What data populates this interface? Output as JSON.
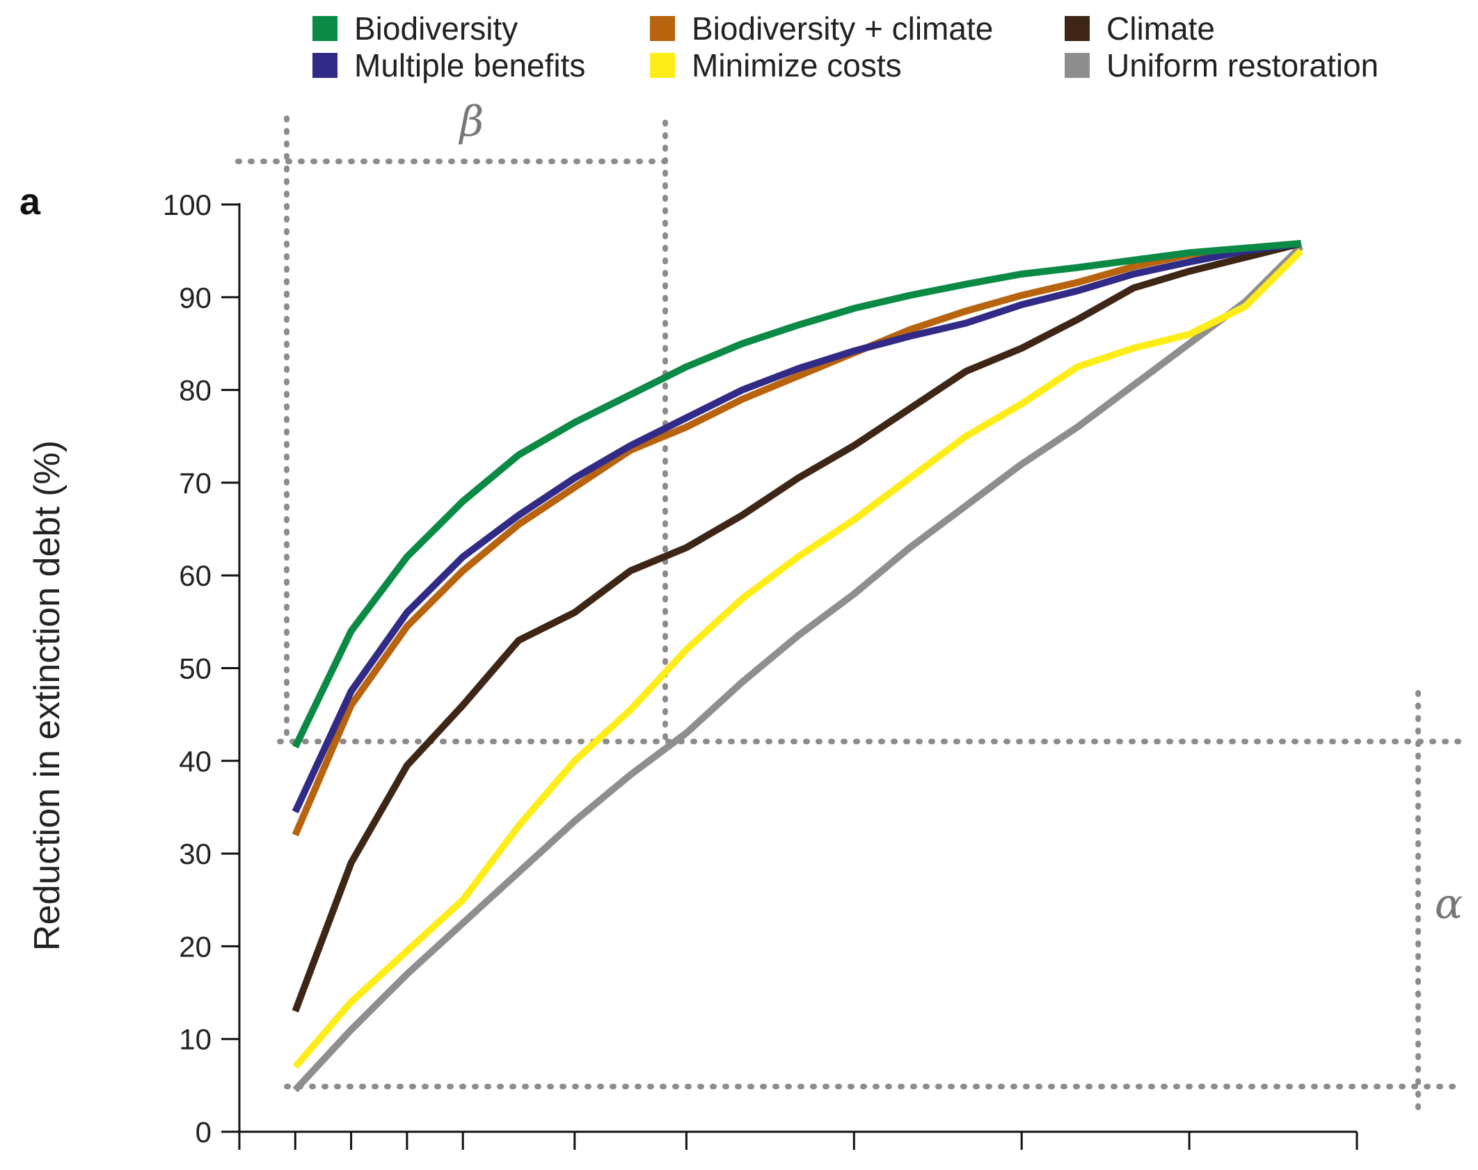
{
  "chart_data": {
    "type": "line",
    "panel_label": "a",
    "title": "",
    "xlabel": "",
    "ylabel": "Reduction in extinction debt (%)",
    "ylim": [
      0,
      100
    ],
    "y_ticks": [
      "0",
      "10",
      "20",
      "30",
      "40",
      "50",
      "60",
      "70",
      "80",
      "90",
      "100"
    ],
    "x": [
      1,
      2,
      3,
      4,
      5,
      6,
      7,
      8,
      9,
      10,
      11,
      12,
      13,
      14,
      15,
      16,
      17,
      18,
      19
    ],
    "x_tick_positions": [
      0,
      1,
      2,
      3,
      4,
      6,
      8,
      11,
      14,
      17,
      20
    ],
    "legend_position": "top",
    "series": [
      {
        "name": "Biodiversity",
        "color": "#0a8a45",
        "values": [
          41.5,
          54,
          62,
          68,
          73,
          76.5,
          79.5,
          82.5,
          85,
          87,
          88.8,
          90.2,
          91.4,
          92.5,
          93.2,
          94,
          94.8,
          95.3,
          95.8
        ]
      },
      {
        "name": "Biodiversity + climate",
        "color": "#b8630e",
        "values": [
          32,
          46,
          54.5,
          60.5,
          65.5,
          69.5,
          73.5,
          76,
          79,
          81.5,
          84,
          86.5,
          88.5,
          90.2,
          91.6,
          93.3,
          94.6,
          95.3,
          95.8
        ]
      },
      {
        "name": "Climate",
        "color": "#3e2616",
        "values": [
          13,
          29,
          39.5,
          46,
          53,
          56,
          60.5,
          63,
          66.5,
          70.5,
          74,
          78,
          82,
          84.5,
          87.6,
          91,
          92.8,
          94.3,
          95.8
        ]
      },
      {
        "name": "Multiple benefits",
        "color": "#312a86",
        "values": [
          34.5,
          47.5,
          56,
          62,
          66.5,
          70.5,
          74,
          77,
          80,
          82.3,
          84.2,
          85.8,
          87.2,
          89.2,
          90.7,
          92.5,
          93.8,
          95,
          95.8
        ]
      },
      {
        "name": "Minimize costs",
        "color": "#ffed1a",
        "values": [
          7,
          14,
          19.5,
          25,
          33,
          40,
          45.5,
          52,
          57.5,
          62,
          66,
          70.5,
          75,
          78.5,
          82.5,
          84.5,
          86,
          89,
          95
        ]
      },
      {
        "name": "Uniform restoration",
        "color": "#8e8e8e",
        "values": [
          4.5,
          11,
          17,
          22.5,
          28,
          33.5,
          38.5,
          43,
          48.5,
          53.5,
          58,
          63,
          67.5,
          72,
          76,
          80.5,
          85,
          89.5,
          95.5
        ]
      }
    ],
    "annotations": {
      "beta": "β",
      "alpha": "α"
    }
  }
}
